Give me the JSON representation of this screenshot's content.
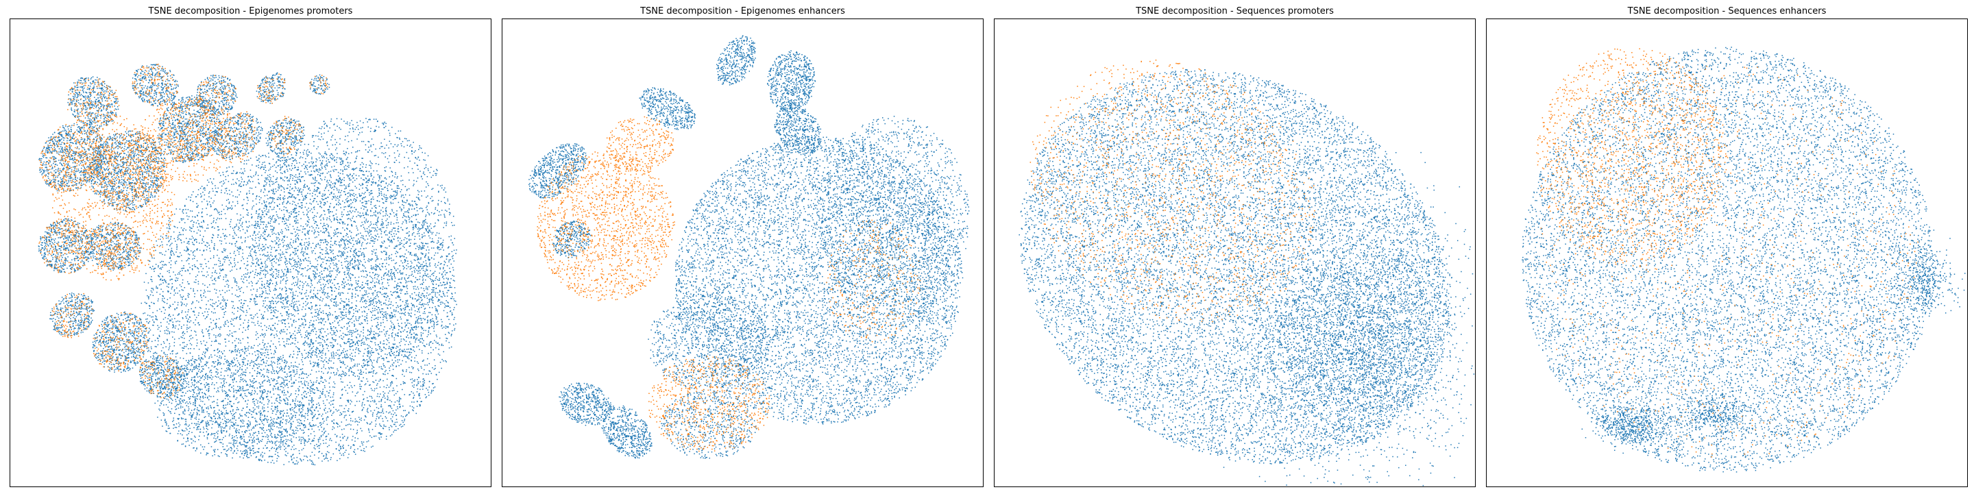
{
  "figure": {
    "colors": {
      "class_a": "#1f77b4",
      "class_b": "#ff7f0e",
      "frame": "#000000",
      "background": "#ffffff"
    }
  },
  "chart_data": [
    {
      "type": "scatter",
      "title": "TSNE decomposition - Epigenomes promoters",
      "xlabel": "",
      "ylabel": "",
      "axes_visible": false,
      "grid": false,
      "legend": "none",
      "series": [
        {
          "color": "#1f77b4",
          "approx_share": 0.85,
          "region": "dense central/right blob with fragmented islands on left"
        },
        {
          "color": "#ff7f0e",
          "approx_share": 0.15,
          "region": "upper-left islands"
        }
      ]
    },
    {
      "type": "scatter",
      "title": "TSNE decomposition - Epigenomes enhancers",
      "xlabel": "",
      "ylabel": "",
      "axes_visible": false,
      "grid": false,
      "legend": "none",
      "series": [
        {
          "color": "#1f77b4",
          "approx_share": 0.8,
          "region": "large central/right blob"
        },
        {
          "color": "#ff7f0e",
          "approx_share": 0.2,
          "region": "left cluster and lower-middle cluster"
        }
      ]
    },
    {
      "type": "scatter",
      "title": "TSNE decomposition - Sequences promoters",
      "xlabel": "",
      "ylabel": "",
      "axes_visible": false,
      "grid": false,
      "legend": "none",
      "series": [
        {
          "color": "#1f77b4",
          "approx_share": 0.88,
          "region": "single tilted elliptical cloud, denser lower-right"
        },
        {
          "color": "#ff7f0e",
          "approx_share": 0.12,
          "region": "sparse, mostly upper-left of the cloud"
        }
      ]
    },
    {
      "type": "scatter",
      "title": "TSNE decomposition - Sequences enhancers",
      "xlabel": "",
      "ylabel": "",
      "axes_visible": false,
      "grid": false,
      "legend": "none",
      "series": [
        {
          "color": "#1f77b4",
          "approx_share": 0.88,
          "region": "round diffuse cloud with small dense clusters at bottom and right"
        },
        {
          "color": "#ff7f0e",
          "approx_share": 0.12,
          "region": "concentrated in upper-left part of cloud"
        }
      ]
    }
  ]
}
